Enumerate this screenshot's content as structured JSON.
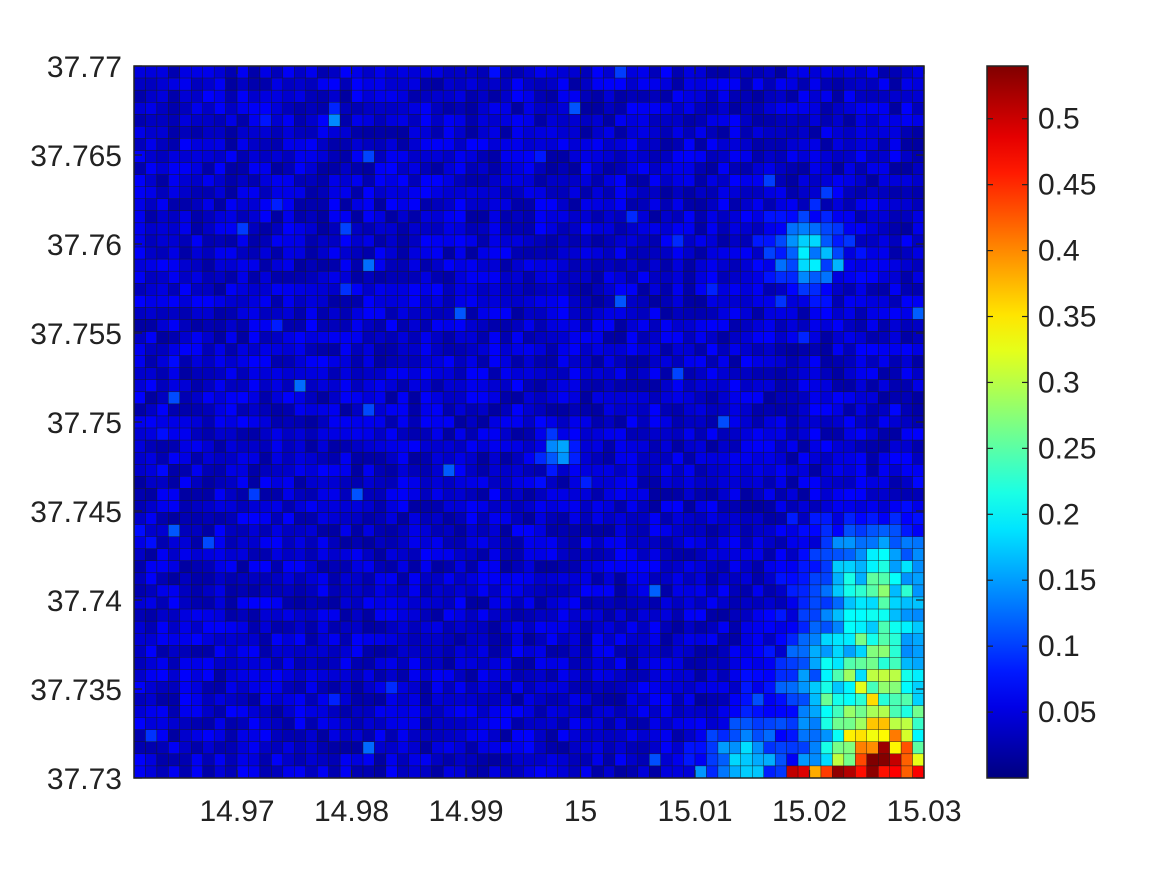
{
  "chart_data": {
    "type": "heatmap",
    "title": "",
    "xlabel": "",
    "ylabel": "",
    "xlim": [
      14.961,
      15.03
    ],
    "ylim": [
      37.73,
      37.77
    ],
    "x_ticks": [
      "14.97",
      "14.98",
      "14.99",
      "15",
      "15.01",
      "15.02",
      "15.03"
    ],
    "x_tick_values": [
      14.97,
      14.98,
      14.99,
      15.0,
      15.01,
      15.02,
      15.03
    ],
    "y_ticks": [
      "37.73",
      "37.735",
      "37.74",
      "37.745",
      "37.75",
      "37.755",
      "37.76",
      "37.765",
      "37.77"
    ],
    "y_tick_values": [
      37.73,
      37.735,
      37.74,
      37.745,
      37.75,
      37.755,
      37.76,
      37.765,
      37.77
    ],
    "grid_size": {
      "cols": 69,
      "rows": 59
    },
    "colormap": "jet",
    "colorbar": {
      "range": [
        0.0,
        0.54
      ],
      "ticks": [
        "0.05",
        "0.1",
        "0.15",
        "0.2",
        "0.25",
        "0.3",
        "0.35",
        "0.4",
        "0.45",
        "0.5"
      ],
      "tick_values": [
        0.05,
        0.1,
        0.15,
        0.2,
        0.25,
        0.3,
        0.35,
        0.4,
        0.45,
        0.5
      ]
    },
    "background_level": 0.05,
    "hotspots": [
      {
        "lon": 15.0265,
        "lat": 37.7305,
        "value": 0.5,
        "radius": 0.004
      },
      {
        "lon": 15.025,
        "lat": 37.735,
        "value": 0.26,
        "radius": 0.006
      },
      {
        "lon": 15.026,
        "lat": 37.741,
        "value": 0.2,
        "radius": 0.005
      },
      {
        "lon": 15.014,
        "lat": 37.731,
        "value": 0.16,
        "radius": 0.003
      },
      {
        "lon": 15.02,
        "lat": 37.7595,
        "value": 0.14,
        "radius": 0.003
      },
      {
        "lon": 14.998,
        "lat": 37.7485,
        "value": 0.14,
        "radius": 0.0015
      }
    ]
  }
}
